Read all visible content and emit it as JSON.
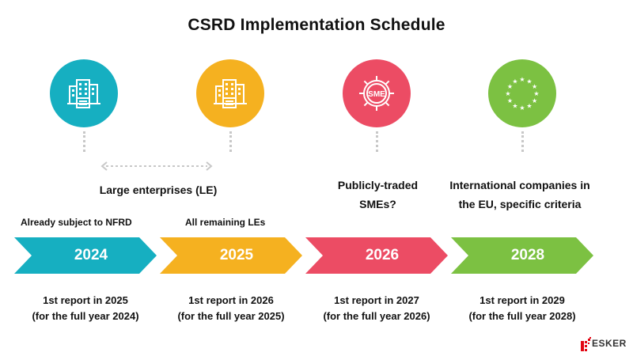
{
  "title": "CSRD Implementation Schedule",
  "milestones": [
    {
      "year": "2024",
      "icon": "office-buildings-icon",
      "color": "#16afc1",
      "sub_label": "Already subject to NFRD",
      "report_line1": "1st report in 2025",
      "report_line2": "(for the full year 2024)"
    },
    {
      "year": "2025",
      "icon": "office-buildings-icon",
      "color": "#f5b120",
      "sub_label": "All remaining LEs",
      "report_line1": "1st report in 2026",
      "report_line2": "(for the full year 2025)"
    },
    {
      "year": "2026",
      "icon": "sme-gear-icon",
      "icon_text": "SME",
      "color": "#ec4c64",
      "label_line1": "Publicly-traded",
      "label_line2": "SMEs?",
      "report_line1": "1st report in 2027",
      "report_line2": "(for the full year 2026)"
    },
    {
      "year": "2028",
      "icon": "eu-stars-icon",
      "color": "#7cc142",
      "label_line1": "International companies in",
      "label_line2": "the EU, specific criteria",
      "report_line1": "1st report in 2029",
      "report_line2": "(for the full year 2028)"
    }
  ],
  "group_label": "Large enterprises (LE)",
  "logo": {
    "text": "ESKER",
    "color": "#e30613"
  }
}
